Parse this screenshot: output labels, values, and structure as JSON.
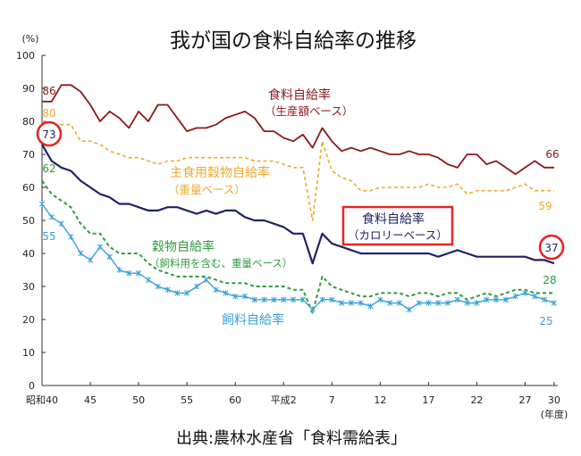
{
  "chart_data": {
    "type": "line",
    "title": "我が国の食料自給率の推移",
    "ylabel": "(%)",
    "xlabel": "(年度)",
    "ylim": [
      0,
      100
    ],
    "grid": false,
    "y_ticks": [
      "0",
      "10",
      "20",
      "30",
      "40",
      "50",
      "60",
      "70",
      "80",
      "90",
      "100"
    ],
    "x_ticks": [
      "昭和40",
      "45",
      "50",
      "55",
      "60",
      "平成2",
      "7",
      "12",
      "17",
      "22",
      "27",
      "30"
    ],
    "categories": [
      "昭和40",
      "昭和41",
      "昭和42",
      "昭和43",
      "昭和44",
      "昭和45",
      "昭和46",
      "昭和47",
      "昭和48",
      "昭和49",
      "昭和50",
      "昭和51",
      "昭和52",
      "昭和53",
      "昭和54",
      "昭和55",
      "昭和56",
      "昭和57",
      "昭和58",
      "昭和59",
      "昭和60",
      "昭和61",
      "昭和62",
      "昭和63",
      "平成元",
      "平成2",
      "平成3",
      "平成4",
      "平成5",
      "平成6",
      "平成7",
      "平成8",
      "平成9",
      "平成10",
      "平成11",
      "平成12",
      "平成13",
      "平成14",
      "平成15",
      "平成16",
      "平成17",
      "平成18",
      "平成19",
      "平成20",
      "平成21",
      "平成22",
      "平成23",
      "平成24",
      "平成25",
      "平成26",
      "平成27",
      "平成28",
      "平成29",
      "平成30"
    ],
    "highlight_color": "#e52520",
    "series": [
      {
        "name": "食料自給率",
        "name_note": "（生産額ベース）",
        "color": "#8b1a1a",
        "dashed": false,
        "marker": false,
        "highlighted": false,
        "start_label": "86",
        "end_label": "66",
        "values": [
          86,
          86,
          91,
          91,
          89,
          85,
          80,
          83,
          81,
          78,
          83,
          80,
          85,
          85,
          81,
          77,
          78,
          78,
          79,
          81,
          82,
          83,
          81,
          77,
          77,
          75,
          74,
          76,
          72,
          78,
          74,
          71,
          72,
          71,
          72,
          71,
          70,
          70,
          71,
          70,
          70,
          69,
          67,
          66,
          70,
          70,
          67,
          68,
          66,
          64,
          66,
          68,
          66,
          66
        ]
      },
      {
        "name": "主食用穀物自給率",
        "name_note": "（重量ベース）",
        "color": "#f0a830",
        "dashed": true,
        "marker": false,
        "highlighted": false,
        "start_label": "80",
        "end_label": "59",
        "values": [
          80,
          79,
          79,
          79,
          74,
          74,
          73,
          71,
          70,
          69,
          69,
          68,
          67,
          68,
          68,
          69,
          69,
          69,
          69,
          69,
          69,
          69,
          68,
          68,
          68,
          67,
          66,
          66,
          50,
          74,
          65,
          63,
          62,
          59,
          59,
          60,
          60,
          60,
          60,
          60,
          61,
          60,
          60,
          61,
          58,
          59,
          59,
          59,
          59,
          60,
          61,
          59,
          59,
          59
        ]
      },
      {
        "name": "食料自給率",
        "name_note": "（カロリーベース）",
        "color": "#1f2366",
        "dashed": false,
        "marker": false,
        "highlighted": true,
        "start_label": "73",
        "end_label": "37",
        "values": [
          73,
          68,
          66,
          65,
          62,
          60,
          58,
          57,
          55,
          55,
          54,
          53,
          53,
          54,
          54,
          53,
          52,
          53,
          52,
          53,
          53,
          51,
          50,
          50,
          49,
          48,
          46,
          46,
          37,
          46,
          43,
          42,
          41,
          40,
          40,
          40,
          40,
          40,
          40,
          40,
          40,
          39,
          40,
          41,
          40,
          39,
          39,
          39,
          39,
          39,
          39,
          38,
          38,
          37
        ]
      },
      {
        "name": "穀物自給率",
        "name_note": "（飼料用を含む、重量ベース）",
        "color": "#2f9a3c",
        "dashed": true,
        "marker": false,
        "highlighted": false,
        "start_label": "62",
        "end_label": "28",
        "values": [
          62,
          58,
          56,
          54,
          49,
          46,
          46,
          42,
          40,
          40,
          40,
          37,
          35,
          34,
          33,
          33,
          33,
          33,
          32,
          31,
          31,
          31,
          30,
          30,
          30,
          30,
          29,
          29,
          22,
          33,
          30,
          29,
          28,
          27,
          27,
          28,
          28,
          28,
          27,
          28,
          28,
          27,
          28,
          28,
          26,
          27,
          28,
          27,
          28,
          29,
          29,
          28,
          28,
          28
        ]
      },
      {
        "name": "飼料自給率",
        "color": "#3aa0d9",
        "dashed": false,
        "marker": true,
        "highlighted": false,
        "start_label": "55",
        "end_label": "25",
        "values": [
          55,
          51,
          49,
          45,
          40,
          38,
          42,
          39,
          35,
          34,
          34,
          32,
          30,
          29,
          28,
          28,
          30,
          32,
          29,
          28,
          27,
          27,
          26,
          26,
          26,
          26,
          26,
          26,
          23,
          26,
          26,
          25,
          25,
          25,
          24,
          26,
          25,
          25,
          23,
          25,
          25,
          25,
          25,
          26,
          25,
          25,
          26,
          26,
          26,
          27,
          28,
          27,
          26,
          25
        ]
      }
    ]
  },
  "source": "出典:農林水産省「食料需給表」"
}
